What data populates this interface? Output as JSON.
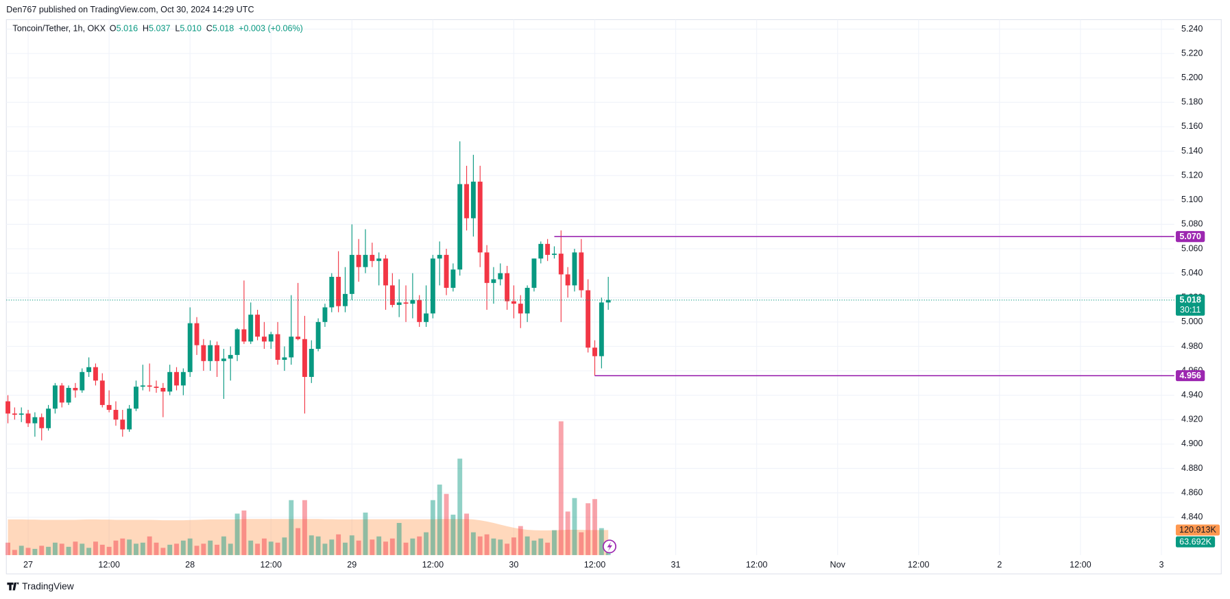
{
  "header": "Den767 published on TradingView.com, Oct 30, 2024 14:29 UTC",
  "footer": "TradingView",
  "chart_data": {
    "type": "candlestick",
    "title": "Toncoin/Tether, 1h, OKX",
    "legend_fields": [
      {
        "key": "O",
        "value": 5.016,
        "label": "5.016"
      },
      {
        "key": "H",
        "value": 5.037,
        "label": "5.037"
      },
      {
        "key": "L",
        "value": 5.01,
        "label": "5.010"
      },
      {
        "key": "C",
        "value": 5.018,
        "label": "5.018"
      }
    ],
    "change": "+0.003 (+0.06%)",
    "x": [
      0,
      1,
      2,
      3,
      4,
      5,
      6,
      7,
      8,
      9,
      10,
      11,
      12,
      13,
      14,
      15,
      16,
      17,
      18,
      19,
      20,
      21,
      22,
      23,
      24,
      25,
      26,
      27,
      28,
      29,
      30,
      31,
      32,
      33,
      34,
      35,
      36,
      37,
      38,
      39,
      40,
      41,
      42,
      43,
      44,
      45,
      46,
      47,
      48,
      49,
      50,
      51,
      52,
      53,
      54,
      55,
      56,
      57,
      58,
      59,
      60,
      61,
      62,
      63,
      64,
      65,
      66,
      67,
      68,
      69,
      70,
      71,
      72,
      73,
      74,
      75,
      76,
      77,
      78,
      79,
      80,
      81,
      82,
      83,
      84,
      85,
      86,
      87,
      88,
      89
    ],
    "open": [
      4.935,
      4.925,
      4.924,
      4.925,
      4.917,
      4.922,
      4.913,
      4.929,
      4.948,
      4.934,
      4.946,
      4.944,
      4.959,
      4.963,
      4.952,
      4.932,
      4.928,
      4.92,
      4.912,
      4.929,
      4.947,
      4.948,
      4.947,
      4.946,
      4.943,
      4.959,
      4.948,
      4.959,
      4.999,
      4.981,
      4.968,
      4.981,
      4.968,
      4.97,
      4.973,
      4.994,
      4.984,
      5.006,
      4.988,
      4.984,
      4.99,
      4.969,
      4.971,
      4.988,
      4.986,
      4.955,
      4.978,
      5.0,
      5.012,
      5.037,
      5.013,
      5.023,
      5.055,
      5.045,
      5.055,
      5.05,
      5.052,
      5.03,
      5.014,
      5.016,
      5.015,
      5.018,
      5.0,
      5.007,
      5.052,
      5.055,
      5.028,
      5.043,
      5.113,
      5.085,
      5.115,
      5.057,
      5.032,
      5.035,
      5.04,
      5.017,
      5.015,
      5.007,
      5.028,
      5.052,
      5.064,
      5.055,
      5.056,
      5.039,
      5.03,
      5.057,
      5.026,
      4.979,
      4.972,
      5.016
    ],
    "high": [
      4.94,
      4.93,
      4.93,
      4.928,
      4.926,
      4.925,
      4.932,
      4.95,
      4.95,
      4.948,
      4.95,
      4.962,
      4.971,
      4.966,
      4.958,
      4.944,
      4.935,
      4.928,
      4.932,
      4.952,
      4.965,
      4.966,
      4.952,
      4.95,
      4.965,
      4.963,
      4.962,
      5.012,
      5.004,
      4.986,
      4.985,
      4.984,
      4.978,
      4.98,
      4.995,
      5.034,
      5.016,
      5.01,
      5.0,
      4.992,
      5.0,
      4.98,
      5.022,
      5.032,
      5.005,
      4.985,
      5.003,
      5.015,
      5.04,
      5.058,
      5.045,
      5.08,
      5.068,
      5.076,
      5.065,
      5.057,
      5.055,
      5.04,
      5.035,
      5.03,
      5.04,
      5.022,
      5.03,
      5.055,
      5.066,
      5.06,
      5.048,
      5.148,
      5.128,
      5.137,
      5.128,
      5.063,
      5.045,
      5.048,
      5.046,
      5.03,
      5.022,
      5.03,
      5.052,
      5.066,
      5.068,
      5.062,
      5.075,
      5.045,
      5.06,
      5.068,
      5.035,
      4.985,
      5.02,
      5.037
    ],
    "low": [
      4.917,
      4.92,
      4.918,
      4.914,
      4.906,
      4.903,
      4.911,
      4.925,
      4.93,
      4.932,
      4.938,
      4.942,
      4.955,
      4.948,
      4.93,
      4.926,
      4.915,
      4.906,
      4.91,
      4.927,
      4.944,
      4.943,
      4.942,
      4.922,
      4.94,
      4.944,
      4.94,
      4.955,
      4.973,
      4.96,
      4.96,
      4.955,
      4.937,
      4.952,
      4.968,
      4.982,
      4.982,
      4.985,
      4.978,
      4.978,
      4.965,
      4.96,
      4.965,
      4.985,
      4.925,
      4.95,
      4.976,
      4.996,
      5.008,
      5.008,
      5.008,
      5.018,
      5.033,
      5.04,
      5.045,
      5.03,
      5.01,
      5.012,
      5.004,
      5.0,
      5.003,
      4.996,
      4.996,
      5.003,
      5.03,
      5.022,
      5.025,
      5.038,
      5.075,
      5.07,
      5.045,
      5.01,
      5.015,
      5.03,
      5.01,
      5.003,
      4.995,
      5.0,
      5.025,
      5.048,
      5.05,
      5.052,
      5.0,
      5.02,
      5.025,
      5.02,
      4.975,
      4.956,
      4.962,
      5.01
    ],
    "close": [
      4.925,
      4.924,
      4.925,
      4.917,
      4.922,
      4.913,
      4.929,
      4.948,
      4.934,
      4.946,
      4.944,
      4.959,
      4.963,
      4.952,
      4.932,
      4.928,
      4.92,
      4.912,
      4.929,
      4.947,
      4.948,
      4.947,
      4.946,
      4.943,
      4.959,
      4.948,
      4.959,
      4.999,
      4.981,
      4.968,
      4.981,
      4.968,
      4.97,
      4.973,
      4.994,
      4.984,
      5.006,
      4.988,
      4.984,
      4.99,
      4.969,
      4.971,
      4.988,
      4.986,
      4.955,
      4.978,
      5.0,
      5.012,
      5.037,
      5.013,
      5.023,
      5.055,
      5.045,
      5.055,
      5.05,
      5.052,
      5.03,
      5.014,
      5.016,
      5.015,
      5.018,
      5.0,
      5.007,
      5.052,
      5.055,
      5.028,
      5.043,
      5.113,
      5.085,
      5.115,
      5.057,
      5.032,
      5.035,
      5.04,
      5.017,
      5.015,
      5.007,
      5.028,
      5.052,
      5.064,
      5.055,
      5.056,
      5.039,
      5.03,
      5.057,
      5.026,
      4.979,
      4.972,
      5.016,
      5.018
    ],
    "up_color": "#089981",
    "down_color": "#f23645",
    "volume": {
      "values": [
        60000,
        25000,
        45000,
        35000,
        30000,
        45000,
        40000,
        60000,
        55000,
        40000,
        65000,
        55000,
        35000,
        65000,
        50000,
        40000,
        70000,
        80000,
        75000,
        55000,
        60000,
        90000,
        60000,
        35000,
        50000,
        55000,
        70000,
        80000,
        45000,
        55000,
        70000,
        50000,
        90000,
        55000,
        200000,
        215000,
        70000,
        55000,
        80000,
        65000,
        60000,
        85000,
        265000,
        130000,
        265000,
        95000,
        90000,
        55000,
        75000,
        100000,
        60000,
        95000,
        70000,
        205000,
        75000,
        90000,
        65000,
        80000,
        155000,
        60000,
        80000,
        90000,
        110000,
        265000,
        340000,
        295000,
        195000,
        465000,
        200000,
        110000,
        90000,
        100000,
        80000,
        75000,
        55000,
        85000,
        140000,
        90000,
        70000,
        80000,
        60000,
        120000,
        645000,
        210000,
        275000,
        110000,
        250000,
        270000,
        130000,
        63692
      ],
      "last": {
        "value": 63692,
        "label": "63.692K"
      }
    },
    "volume_ma": {
      "color": "#ff9850",
      "values": [
        172000,
        172000,
        172000,
        171000,
        171000,
        170000,
        170000,
        170000,
        170000,
        170000,
        170000,
        171000,
        172000,
        172000,
        171000,
        171000,
        170000,
        170000,
        170000,
        170000,
        170000,
        170000,
        169000,
        168000,
        168000,
        168000,
        168000,
        169000,
        170000,
        171000,
        172000,
        172000,
        172000,
        172000,
        173000,
        174000,
        174000,
        174000,
        174000,
        174000,
        174000,
        174000,
        174000,
        174000,
        174000,
        174000,
        174000,
        173000,
        173000,
        172000,
        172000,
        172000,
        172000,
        173000,
        173000,
        173000,
        173000,
        173000,
        173000,
        173000,
        173000,
        173000,
        173000,
        173000,
        174000,
        174000,
        174000,
        174000,
        174000,
        172000,
        168000,
        162000,
        155000,
        147000,
        139000,
        132000,
        126000,
        122000,
        120000,
        119000,
        119000,
        120000,
        121000,
        122000,
        122000,
        122000,
        121000,
        121000,
        121000,
        120913
      ],
      "last": {
        "value": 120913,
        "label": "120.913K"
      }
    },
    "levels": [
      {
        "value": 5.07,
        "label": "5.070",
        "start": 81,
        "color": "#9c27b0"
      },
      {
        "value": 4.956,
        "label": "4.956",
        "start": 87,
        "color": "#9c27b0"
      }
    ],
    "last_price": {
      "value": 5.018,
      "label": "5.018",
      "countdown": "30:11"
    },
    "ylim": [
      4.809,
      5.251
    ],
    "yticks": [
      {
        "value": 4.84,
        "label": "4.840"
      },
      {
        "value": 4.86,
        "label": "4.860"
      },
      {
        "value": 4.88,
        "label": "4.880"
      },
      {
        "value": 4.9,
        "label": "4.900"
      },
      {
        "value": 4.92,
        "label": "4.920"
      },
      {
        "value": 4.94,
        "label": "4.940"
      },
      {
        "value": 4.96,
        "label": "4.960"
      },
      {
        "value": 4.98,
        "label": "4.980"
      },
      {
        "value": 5.0,
        "label": "5.000"
      },
      {
        "value": 5.02,
        "label": "5.020"
      },
      {
        "value": 5.04,
        "label": "5.040"
      },
      {
        "value": 5.06,
        "label": "5.060"
      },
      {
        "value": 5.08,
        "label": "5.080"
      },
      {
        "value": 5.1,
        "label": "5.100"
      },
      {
        "value": 5.12,
        "label": "5.120"
      },
      {
        "value": 5.14,
        "label": "5.140"
      },
      {
        "value": 5.16,
        "label": "5.160"
      },
      {
        "value": 5.18,
        "label": "5.180"
      },
      {
        "value": 5.2,
        "label": "5.200"
      },
      {
        "value": 5.22,
        "label": "5.220"
      },
      {
        "value": 5.24,
        "label": "5.240"
      }
    ],
    "xlim": [
      -0.23,
      172.9
    ],
    "xticks": [
      {
        "value": 3,
        "label": "27"
      },
      {
        "value": 15,
        "label": "12:00"
      },
      {
        "value": 27,
        "label": "28"
      },
      {
        "value": 39,
        "label": "12:00"
      },
      {
        "value": 51,
        "label": "29"
      },
      {
        "value": 63,
        "label": "12:00"
      },
      {
        "value": 75,
        "label": "30"
      },
      {
        "value": 87,
        "label": "12:00"
      },
      {
        "value": 99,
        "label": "31"
      },
      {
        "value": 111,
        "label": "12:00"
      },
      {
        "value": 123,
        "label": "Nov"
      },
      {
        "value": 135,
        "label": "12:00"
      },
      {
        "value": 147,
        "label": "2"
      },
      {
        "value": 159,
        "label": "12:00"
      },
      {
        "value": 171,
        "label": "3"
      }
    ],
    "grid": true
  }
}
